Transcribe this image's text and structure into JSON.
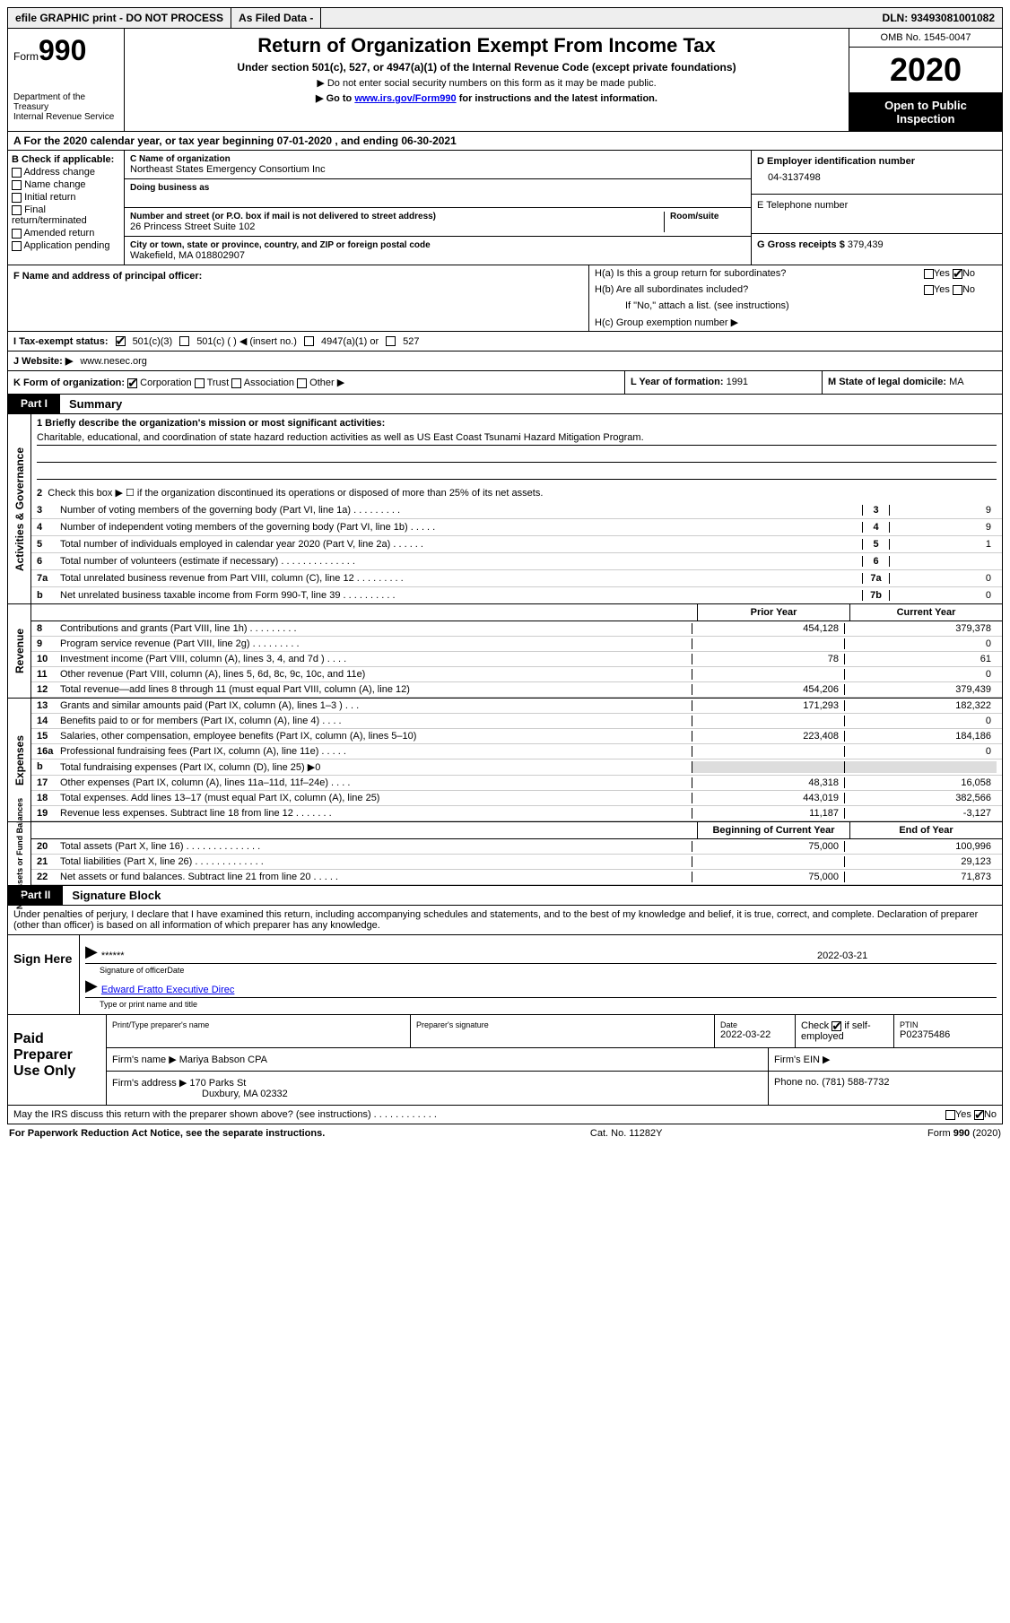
{
  "topbar": {
    "efile": "efile GRAPHIC print - DO NOT PROCESS",
    "asfiled": "As Filed Data -",
    "dln_label": "DLN:",
    "dln": "93493081001082"
  },
  "header": {
    "form": "Form",
    "form_num": "990",
    "dept": "Department of the Treasury\nInternal Revenue Service",
    "title": "Return of Organization Exempt From Income Tax",
    "subtitle": "Under section 501(c), 527, or 4947(a)(1) of the Internal Revenue Code (except private foundations)",
    "note1": "▶ Do not enter social security numbers on this form as it may be made public.",
    "note2_pre": "▶ Go to ",
    "note2_link": "www.irs.gov/Form990",
    "note2_post": " for instructions and the latest information.",
    "omb": "OMB No. 1545-0047",
    "year": "2020",
    "open": "Open to Public Inspection"
  },
  "row_a": "A   For the 2020 calendar year, or tax year beginning 07-01-2020   , and ending 06-30-2021",
  "b": {
    "label": "B Check if applicable:",
    "items": [
      "Address change",
      "Name change",
      "Initial return",
      "Final return/terminated",
      "Amended return",
      "Application pending"
    ]
  },
  "c": {
    "name_lbl": "C Name of organization",
    "name": "Northeast States Emergency Consortium Inc",
    "dba_lbl": "Doing business as",
    "dba": "",
    "street_lbl": "Number and street (or P.O. box if mail is not delivered to street address)",
    "room_lbl": "Room/suite",
    "street": "26 Princess Street Suite 102",
    "city_lbl": "City or town, state or province, country, and ZIP or foreign postal code",
    "city": "Wakefield, MA  018802907"
  },
  "d": {
    "lbl": "D Employer identification number",
    "val": "04-3137498"
  },
  "e": {
    "lbl": "E Telephone number",
    "val": ""
  },
  "g": {
    "lbl": "G Gross receipts $",
    "val": "379,439"
  },
  "f": {
    "lbl": "F  Name and address of principal officer:"
  },
  "h": {
    "a": "H(a)  Is this a group return for subordinates?",
    "b": "H(b)  Are all subordinates included?",
    "b_note": "If \"No,\" attach a list. (see instructions)",
    "c": "H(c)  Group exemption number ▶",
    "yes": "Yes",
    "no": "No"
  },
  "i": {
    "lbl": "I   Tax-exempt status:",
    "opt1": "501(c)(3)",
    "opt2": "501(c) (   ) ◀ (insert no.)",
    "opt3": "4947(a)(1) or",
    "opt4": "527"
  },
  "j": {
    "lbl": "J   Website: ▶",
    "val": "www.nesec.org"
  },
  "k": {
    "lbl": "K Form of organization:",
    "o1": "Corporation",
    "o2": "Trust",
    "o3": "Association",
    "o4": "Other ▶"
  },
  "l": {
    "lbl": "L Year of formation:",
    "val": "1991"
  },
  "m": {
    "lbl": "M State of legal domicile:",
    "val": "MA"
  },
  "part1": {
    "tab": "Part I",
    "title": "Summary"
  },
  "s1": {
    "q1_lbl": "1 Briefly describe the organization's mission or most significant activities:",
    "q1_ans": "Charitable, educational, and coordination of state hazard reduction activities as well as US East Coast Tsunami Hazard Mitigation Program.",
    "q2": "Check this box ▶ ☐ if the organization discontinued its operations or disposed of more than 25% of its net assets.",
    "lines": [
      {
        "n": "3",
        "t": "Number of voting members of the governing body (Part VI, line 1a)  .   .   .   .   .   .   .   .   .",
        "box": "3",
        "val": "9"
      },
      {
        "n": "4",
        "t": "Number of independent voting members of the governing body (Part VI, line 1b)   .   .   .   .   .",
        "box": "4",
        "val": "9"
      },
      {
        "n": "5",
        "t": "Total number of individuals employed in calendar year 2020 (Part V, line 2a)   .   .   .   .   .   .",
        "box": "5",
        "val": "1"
      },
      {
        "n": "6",
        "t": "Total number of volunteers (estimate if necessary)   .   .   .   .   .   .   .   .   .   .   .   .   .   .",
        "box": "6",
        "val": ""
      },
      {
        "n": "7a",
        "t": "Total unrelated business revenue from Part VIII, column (C), line 12   .   .   .   .   .   .   .   .   .",
        "box": "7a",
        "val": "0"
      },
      {
        "n": "b",
        "t": "Net unrelated business taxable income from Form 990-T, line 39   .   .   .   .   .   .   .   .   .   .",
        "box": "7b",
        "val": "0"
      }
    ],
    "vtab": "Activities & Governance"
  },
  "s2": {
    "vtab": "Revenue",
    "hdr_prior": "Prior Year",
    "hdr_curr": "Current Year",
    "lines": [
      {
        "n": "8",
        "t": "Contributions and grants (Part VIII, line 1h)   .   .   .   .   .   .   .   .   .",
        "p": "454,128",
        "c": "379,378"
      },
      {
        "n": "9",
        "t": "Program service revenue (Part VIII, line 2g)   .   .   .   .   .   .   .   .   .",
        "p": "",
        "c": "0"
      },
      {
        "n": "10",
        "t": "Investment income (Part VIII, column (A), lines 3, 4, and 7d )   .   .   .   .",
        "p": "78",
        "c": "61"
      },
      {
        "n": "11",
        "t": "Other revenue (Part VIII, column (A), lines 5, 6d, 8c, 9c, 10c, and 11e)",
        "p": "",
        "c": "0"
      },
      {
        "n": "12",
        "t": "Total revenue—add lines 8 through 11 (must equal Part VIII, column (A), line 12)",
        "p": "454,206",
        "c": "379,439"
      }
    ]
  },
  "s3": {
    "vtab": "Expenses",
    "lines": [
      {
        "n": "13",
        "t": "Grants and similar amounts paid (Part IX, column (A), lines 1–3 )   .   .   .",
        "p": "171,293",
        "c": "182,322"
      },
      {
        "n": "14",
        "t": "Benefits paid to or for members (Part IX, column (A), line 4)   .   .   .   .",
        "p": "",
        "c": "0"
      },
      {
        "n": "15",
        "t": "Salaries, other compensation, employee benefits (Part IX, column (A), lines 5–10)",
        "p": "223,408",
        "c": "184,186"
      },
      {
        "n": "16a",
        "t": "Professional fundraising fees (Part IX, column (A), line 11e)   .   .   .   .   .",
        "p": "",
        "c": "0"
      },
      {
        "n": "b",
        "t": "Total fundraising expenses (Part IX, column (D), line 25) ▶0",
        "p": "shade",
        "c": "shade"
      },
      {
        "n": "17",
        "t": "Other expenses (Part IX, column (A), lines 11a–11d, 11f–24e)   .   .   .   .",
        "p": "48,318",
        "c": "16,058"
      },
      {
        "n": "18",
        "t": "Total expenses. Add lines 13–17 (must equal Part IX, column (A), line 25)",
        "p": "443,019",
        "c": "382,566"
      },
      {
        "n": "19",
        "t": "Revenue less expenses. Subtract line 18 from line 12 .   .   .   .   .   .   .",
        "p": "11,187",
        "c": "-3,127"
      }
    ]
  },
  "s4": {
    "vtab": "Net Assets or Fund Balances",
    "hdr_prior": "Beginning of Current Year",
    "hdr_curr": "End of Year",
    "lines": [
      {
        "n": "20",
        "t": "Total assets (Part X, line 16)   .   .   .   .   .   .   .   .   .   .   .   .   .   .",
        "p": "75,000",
        "c": "100,996"
      },
      {
        "n": "21",
        "t": "Total liabilities (Part X, line 26)   .   .   .   .   .   .   .   .   .   .   .   .   .",
        "p": "",
        "c": "29,123"
      },
      {
        "n": "22",
        "t": "Net assets or fund balances. Subtract line 21 from line 20 .   .   .   .   .",
        "p": "75,000",
        "c": "71,873"
      }
    ]
  },
  "part2": {
    "tab": "Part II",
    "title": "Signature Block"
  },
  "perjury": "Under penalties of perjury, I declare that I have examined this return, including accompanying schedules and statements, and to the best of my knowledge and belief, it is true, correct, and complete. Declaration of preparer (other than officer) is based on all information of which preparer has any knowledge.",
  "sign": {
    "here": "Sign Here",
    "stars": "******",
    "sig_cap": "Signature of officer",
    "date": "2022-03-21",
    "date_cap": "Date",
    "name": "Edward Fratto Executive Direc",
    "name_cap": "Type or print name and title"
  },
  "prep": {
    "here": "Paid Preparer Use Only",
    "col1": "Print/Type preparer's name",
    "col2": "Preparer's signature",
    "col3": "Date",
    "date": "2022-03-22",
    "col4_pre": "Check",
    "col4_post": "if self-employed",
    "ptin_lbl": "PTIN",
    "ptin": "P02375486",
    "firm_name_lbl": "Firm's name   ▶",
    "firm_name": "Mariya Babson CPA",
    "firm_ein_lbl": "Firm's EIN ▶",
    "firm_addr_lbl": "Firm's address ▶",
    "firm_addr1": "170 Parks St",
    "firm_addr2": "Duxbury, MA  02332",
    "phone_lbl": "Phone no.",
    "phone": "(781) 588-7732"
  },
  "discuss": "May the IRS discuss this return with the preparer shown above? (see instructions)   .   .   .   .   .   .   .   .   .   .   .   .",
  "footer": {
    "left": "For Paperwork Reduction Act Notice, see the separate instructions.",
    "mid": "Cat. No. 11282Y",
    "right": "Form 990 (2020)"
  }
}
